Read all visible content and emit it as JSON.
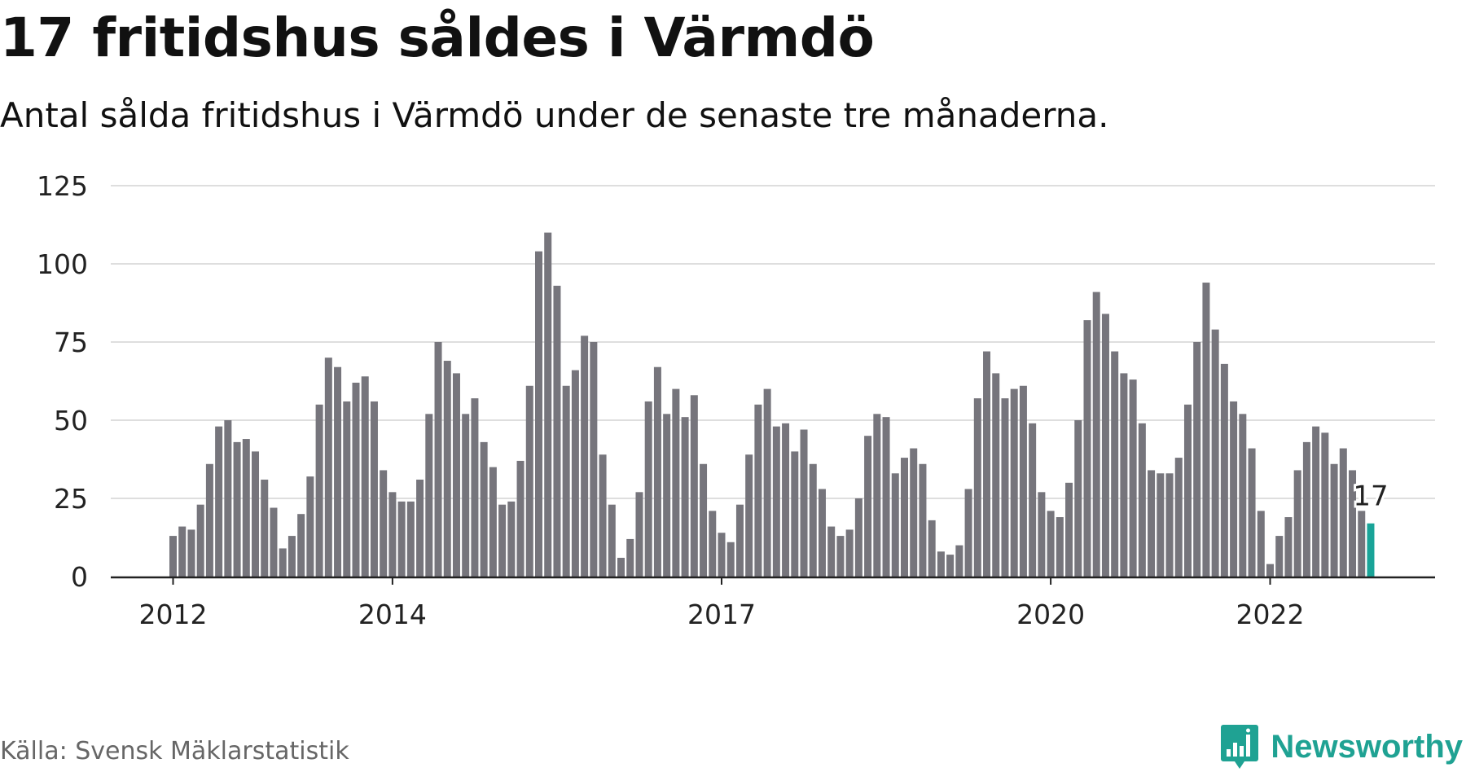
{
  "title": "17 fritidshus såldes i Värmdö",
  "subtitle": "Antal sålda fritidshus i Värmdö under de senaste tre månaderna.",
  "source": "Källa: Svensk Mäklarstatistik",
  "brand": "Newsworthy",
  "colors": {
    "bar": "#76757c",
    "highlight": "#19a498",
    "grid": "#dedede",
    "axis": "#222222",
    "brand": "#1fa293"
  },
  "chart_data": {
    "type": "bar",
    "x_tick_labels": [
      "2012",
      "2014",
      "2017",
      "2020",
      "2022"
    ],
    "x_tick_index": [
      0,
      24,
      60,
      96,
      120
    ],
    "ylim": [
      0,
      125
    ],
    "y_ticks": [
      0,
      25,
      50,
      75,
      100,
      125
    ],
    "grid": true,
    "highlight_label": "17",
    "values": [
      13,
      16,
      15,
      23,
      36,
      48,
      50,
      43,
      44,
      40,
      31,
      22,
      9,
      13,
      20,
      32,
      55,
      70,
      67,
      56,
      62,
      64,
      56,
      34,
      27,
      24,
      24,
      31,
      52,
      75,
      69,
      65,
      52,
      57,
      43,
      35,
      23,
      24,
      37,
      61,
      104,
      110,
      93,
      61,
      66,
      77,
      75,
      39,
      23,
      6,
      12,
      27,
      56,
      67,
      52,
      60,
      51,
      58,
      36,
      21,
      14,
      11,
      23,
      39,
      55,
      60,
      48,
      49,
      40,
      47,
      36,
      28,
      16,
      13,
      15,
      25,
      45,
      52,
      51,
      33,
      38,
      41,
      36,
      18,
      8,
      7,
      10,
      28,
      57,
      72,
      65,
      57,
      60,
      61,
      49,
      27,
      21,
      19,
      30,
      50,
      82,
      91,
      84,
      72,
      65,
      63,
      49,
      34,
      33,
      33,
      38,
      55,
      75,
      94,
      79,
      68,
      56,
      52,
      41,
      21,
      4,
      13,
      19,
      34,
      43,
      48,
      46,
      36,
      41,
      34,
      21,
      17
    ]
  }
}
